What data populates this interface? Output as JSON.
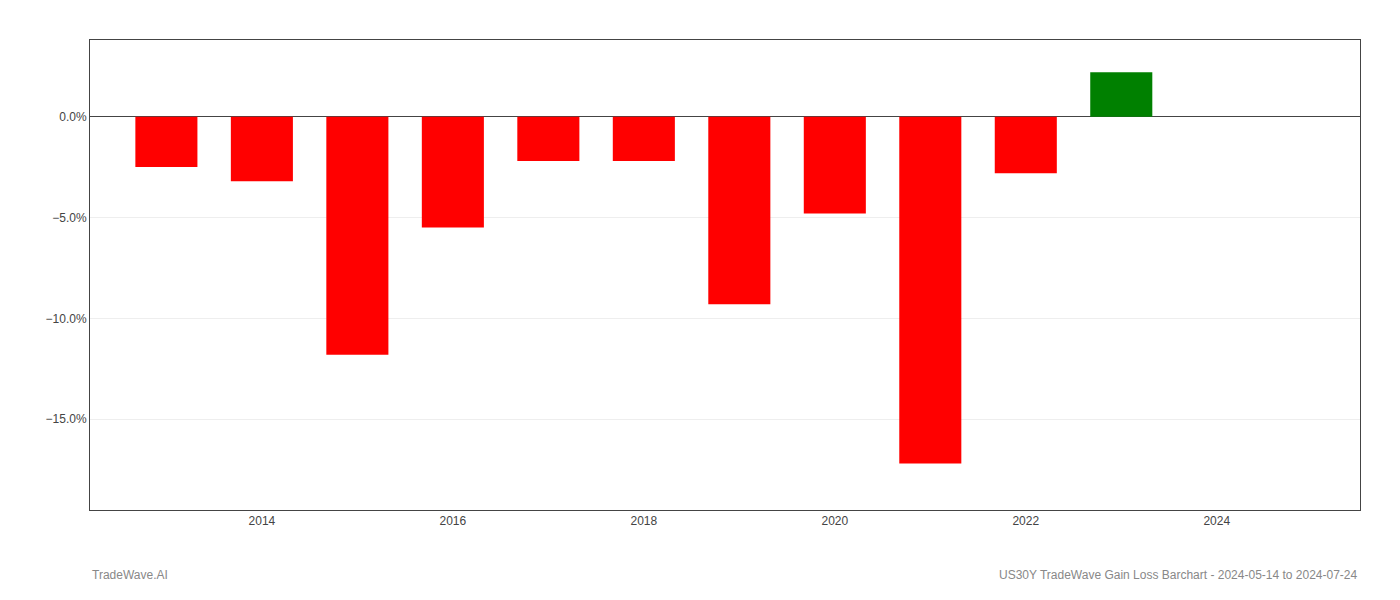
{
  "chart_data": {
    "type": "bar",
    "x": [
      2013,
      2014,
      2015,
      2016,
      2017,
      2018,
      2019,
      2020,
      2021,
      2022,
      2023
    ],
    "values": [
      -2.5,
      -3.2,
      -11.8,
      -5.5,
      -2.2,
      -2.2,
      -9.3,
      -4.8,
      -17.2,
      -2.8,
      2.2
    ],
    "colors": [
      "#ff0000",
      "#ff0000",
      "#ff0000",
      "#ff0000",
      "#ff0000",
      "#ff0000",
      "#ff0000",
      "#ff0000",
      "#ff0000",
      "#ff0000",
      "#008000"
    ],
    "xlim": [
      2012.2,
      2025.5
    ],
    "xticks": [
      2014,
      2016,
      2018,
      2020,
      2022,
      2024
    ],
    "ylim": [
      -19.5,
      3.8
    ],
    "yticks": [
      {
        "value": 0.0,
        "label": "0.0%"
      },
      {
        "value": -5.0,
        "label": "−5.0%"
      },
      {
        "value": -10.0,
        "label": "−10.0%"
      },
      {
        "value": -15.0,
        "label": "−15.0%"
      }
    ],
    "grid": true,
    "annotations": [
      "TradeWave.AI",
      "US30Y TradeWave Gain Loss Barchart - 2024-05-14 to 2024-07-24"
    ]
  }
}
